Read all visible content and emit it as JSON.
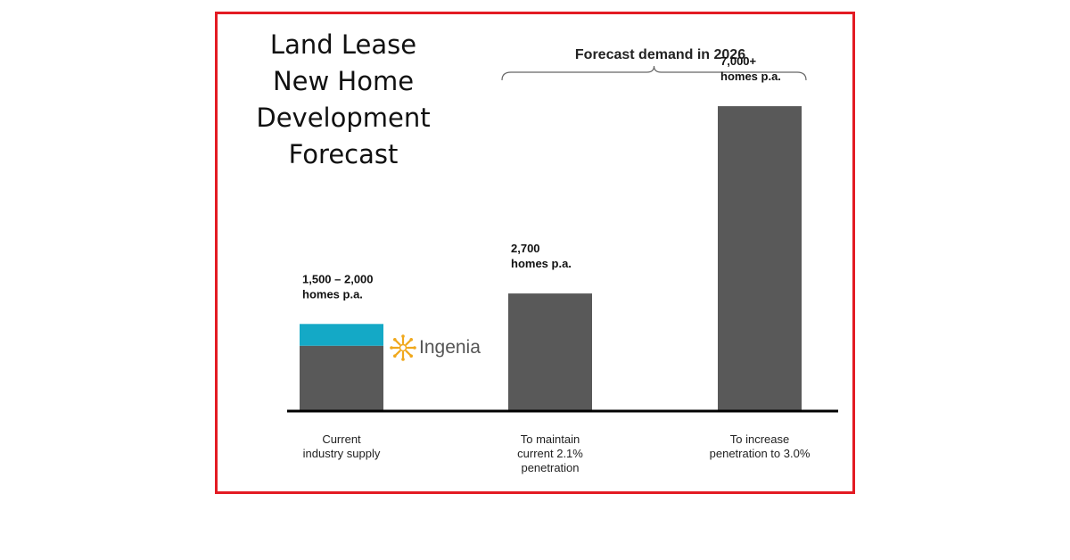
{
  "title_lines": [
    "Land Lease",
    "New Home",
    "Development",
    "Forecast"
  ],
  "forecast_bracket_label": "Forecast demand in 2026",
  "logo_text": "Ingenia",
  "colors": {
    "bar": "#595959",
    "highlight": "#14a9c6",
    "frame": "#e31b23",
    "logo_sun": "#f0a81c"
  },
  "chart_data": {
    "type": "bar",
    "categories": [
      [
        "Current",
        "industry supply"
      ],
      [
        "To maintain",
        "current 2.1%",
        "penetration"
      ],
      [
        "To increase",
        "penetration to 3.0%"
      ]
    ],
    "values": [
      1500,
      2700,
      7000
    ],
    "highlight_segment": {
      "category_index": 0,
      "from": 1500,
      "to": 2000
    },
    "data_labels": [
      [
        "1,500 – 2,000",
        "homes p.a."
      ],
      [
        "2,700",
        "homes p.a."
      ],
      [
        "7,000+",
        "homes p.a."
      ]
    ],
    "ylim": [
      0,
      7800
    ],
    "grid": false,
    "legend": "none"
  }
}
